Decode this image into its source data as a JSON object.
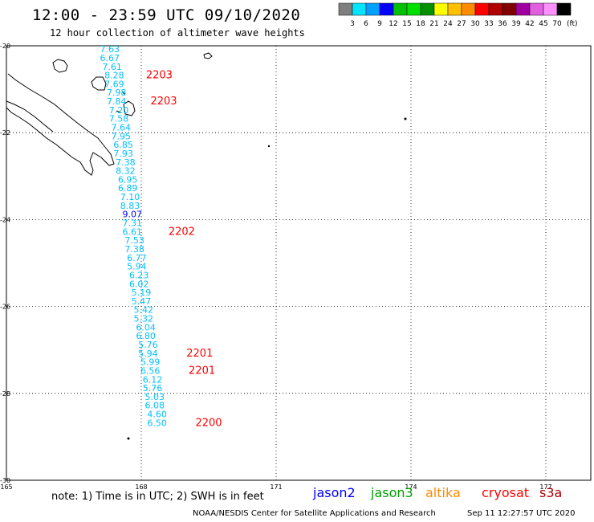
{
  "header": {
    "title": "12:00 - 23:59 UTC 09/10/2020",
    "subtitle": "12 hour collection of altimeter wave heights"
  },
  "colorbar": {
    "colors": [
      "#7f7f7f",
      "#00e5ff",
      "#00a0ff",
      "#0000ff",
      "#00c000",
      "#00e000",
      "#009000",
      "#ffff00",
      "#ffc000",
      "#ff8c00",
      "#ff0000",
      "#b00000",
      "#800000",
      "#a000a0",
      "#e060e0",
      "#ff90ff",
      "#000000"
    ],
    "labels": [
      "3",
      "6",
      "9",
      "12",
      "15",
      "18",
      "21",
      "24",
      "27",
      "30",
      "33",
      "36",
      "39",
      "42",
      "45",
      "70"
    ],
    "unit": "(ft)"
  },
  "footer": {
    "note": "note: 1) Time is in UTC; 2) SWH is in feet",
    "legend": [
      {
        "name": "jason2",
        "color": "#0000ff"
      },
      {
        "name": "jason3",
        "color": "#00a000"
      },
      {
        "name": "altika",
        "color": "#ff8c00"
      },
      {
        "name": "cryosat",
        "color": "#ff0000"
      },
      {
        "name": "s3a",
        "color": "#b00000"
      }
    ],
    "credit": "NOAA/NESDIS Center for Satellite Applications and Research",
    "timestamp": "Sep 11 12:27:57 UTC 2020"
  },
  "chart_data": {
    "type": "scatter",
    "title": "12:00 - 23:59 UTC 09/10/2020",
    "subtitle": "12 hour collection of altimeter wave heights",
    "xlim": [
      165,
      178
    ],
    "ylim": [
      -30,
      -20
    ],
    "xticks": [
      165,
      168,
      171,
      174,
      177
    ],
    "yticks": [
      -20,
      -22,
      -24,
      -26,
      -28,
      -30
    ],
    "grid": true,
    "track_color": "#00bfff",
    "points": [
      {
        "lon": 167.3,
        "lat": -20.15,
        "swh": "7.63"
      },
      {
        "lon": 167.3,
        "lat": -20.35,
        "swh": "6.67"
      },
      {
        "lon": 167.35,
        "lat": -20.55,
        "swh": "7.61"
      },
      {
        "lon": 167.4,
        "lat": -20.75,
        "swh": "8.28"
      },
      {
        "lon": 167.4,
        "lat": -20.95,
        "swh": "7.69"
      },
      {
        "lon": 167.45,
        "lat": -21.15,
        "swh": "7.98"
      },
      {
        "lon": 167.45,
        "lat": -21.35,
        "swh": "7.84"
      },
      {
        "lon": 167.5,
        "lat": -21.55,
        "swh": "7.20"
      },
      {
        "lon": 167.5,
        "lat": -21.75,
        "swh": "7.58"
      },
      {
        "lon": 167.55,
        "lat": -21.95,
        "swh": "7.64"
      },
      {
        "lon": 167.55,
        "lat": -22.15,
        "swh": "7.95"
      },
      {
        "lon": 167.6,
        "lat": -22.35,
        "swh": "6.85"
      },
      {
        "lon": 167.6,
        "lat": -22.55,
        "swh": "7.93"
      },
      {
        "lon": 167.65,
        "lat": -22.75,
        "swh": "7.38"
      },
      {
        "lon": 167.65,
        "lat": -22.95,
        "swh": "8.32"
      },
      {
        "lon": 167.7,
        "lat": -23.15,
        "swh": "6.95"
      },
      {
        "lon": 167.7,
        "lat": -23.35,
        "swh": "6.89"
      },
      {
        "lon": 167.75,
        "lat": -23.55,
        "swh": "7.10"
      },
      {
        "lon": 167.75,
        "lat": -23.75,
        "swh": "8.83"
      },
      {
        "lon": 167.8,
        "lat": -23.95,
        "swh": "9.07",
        "color": "#0000ff"
      },
      {
        "lon": 167.8,
        "lat": -24.15,
        "swh": "7.31"
      },
      {
        "lon": 167.8,
        "lat": -24.35,
        "swh": "6.61"
      },
      {
        "lon": 167.85,
        "lat": -24.55,
        "swh": "7.53"
      },
      {
        "lon": 167.85,
        "lat": -24.75,
        "swh": "7.38"
      },
      {
        "lon": 167.9,
        "lat": -24.95,
        "swh": "6.77"
      },
      {
        "lon": 167.9,
        "lat": -25.15,
        "swh": "5.94"
      },
      {
        "lon": 167.95,
        "lat": -25.35,
        "swh": "6.23"
      },
      {
        "lon": 167.95,
        "lat": -25.55,
        "swh": "6.02"
      },
      {
        "lon": 168.0,
        "lat": -25.75,
        "swh": "5.19"
      },
      {
        "lon": 168.0,
        "lat": -25.95,
        "swh": "5.47"
      },
      {
        "lon": 168.05,
        "lat": -26.15,
        "swh": "5.42"
      },
      {
        "lon": 168.05,
        "lat": -26.35,
        "swh": "5.32"
      },
      {
        "lon": 168.1,
        "lat": -26.55,
        "swh": "6.04"
      },
      {
        "lon": 168.1,
        "lat": -26.75,
        "swh": "6.80"
      },
      {
        "lon": 168.15,
        "lat": -26.95,
        "swh": "5.76"
      },
      {
        "lon": 168.15,
        "lat": -27.15,
        "swh": "5.94"
      },
      {
        "lon": 168.2,
        "lat": -27.35,
        "swh": "5.99"
      },
      {
        "lon": 168.2,
        "lat": -27.55,
        "swh": "6.56"
      },
      {
        "lon": 168.25,
        "lat": -27.75,
        "swh": "6.12"
      },
      {
        "lon": 168.25,
        "lat": -27.95,
        "swh": "5.76"
      },
      {
        "lon": 168.3,
        "lat": -28.15,
        "swh": "5.03"
      },
      {
        "lon": 168.3,
        "lat": -28.35,
        "swh": "6.08"
      },
      {
        "lon": 168.35,
        "lat": -28.55,
        "swh": "4.60"
      },
      {
        "lon": 168.35,
        "lat": -28.75,
        "swh": "6.50"
      }
    ],
    "time_labels": [
      {
        "text": "2203",
        "lon": 168.4,
        "lat": -20.75
      },
      {
        "text": "2203",
        "lon": 168.5,
        "lat": -21.35
      },
      {
        "text": "2202",
        "lon": 168.9,
        "lat": -24.35
      },
      {
        "text": "2201",
        "lon": 169.3,
        "lat": -27.15
      },
      {
        "text": "2201",
        "lon": 169.35,
        "lat": -27.55
      },
      {
        "text": "2200",
        "lon": 169.5,
        "lat": -28.75
      }
    ]
  }
}
